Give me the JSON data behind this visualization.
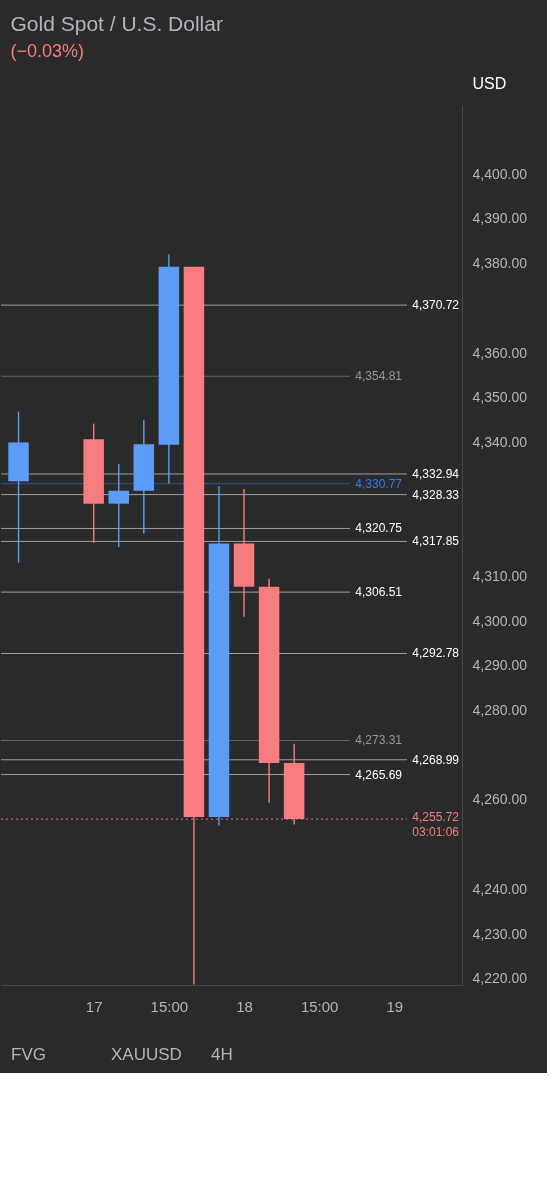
{
  "chart_data": {
    "type": "candlestick",
    "title": "Gold Spot / U.S. Dollar",
    "subtitle": "(−0.03%)",
    "ylabel": "USD",
    "categories": [
      null,
      null,
      null,
      "17",
      null,
      null,
      "15:00",
      null,
      null,
      "18",
      null,
      null,
      "15:00",
      null,
      null,
      "19",
      null,
      null
    ],
    "ohlc": [
      [
        4331.3,
        4346.9,
        4313.1,
        4340.0
      ],
      null,
      null,
      [
        4340.7,
        4344.2,
        4317.5,
        4326.3
      ],
      [
        4326.3,
        4335.2,
        4316.6,
        4329.2
      ],
      [
        4329.2,
        4345.1,
        4319.6,
        4339.6
      ],
      [
        4339.5,
        4382.1,
        4330.8,
        4379.3
      ],
      [
        4379.3,
        4379.3,
        4218.7,
        4256.2
      ],
      [
        4256.2,
        4330.2,
        4254.3,
        4317.4
      ],
      [
        4317.4,
        4329.6,
        4301.0,
        4307.7
      ],
      [
        4307.7,
        4309.5,
        4259.4,
        4268.3
      ],
      [
        4268.3,
        4272.6,
        4254.5,
        4255.72
      ],
      null,
      null,
      null,
      null,
      null,
      null
    ],
    "colors": [
      "#5b9cf6",
      null,
      null,
      "#f77c80",
      "#5b9cf6",
      "#5b9cf6",
      "#5b9cf6",
      "#f77c80",
      "#5b9cf6",
      "#f77c80",
      "#f77c80",
      "#f77c80",
      null,
      null,
      null,
      null,
      null,
      null
    ],
    "ylim": [
      4218.6,
      4415.5
    ],
    "yticks": [
      {
        "value": 4220,
        "label": "4,220.00"
      },
      {
        "value": 4230,
        "label": "4,230.00"
      },
      {
        "value": 4240,
        "label": "4,240.00"
      },
      {
        "value": 4260,
        "label": "4,260.00"
      },
      {
        "value": 4280,
        "label": "4,280.00"
      },
      {
        "value": 4290,
        "label": "4,290.00"
      },
      {
        "value": 4300,
        "label": "4,300.00"
      },
      {
        "value": 4310,
        "label": "4,310.00"
      },
      {
        "value": 4340,
        "label": "4,340.00"
      },
      {
        "value": 4350,
        "label": "4,350.00"
      },
      {
        "value": 4360,
        "label": "4,360.00"
      },
      {
        "value": 4380,
        "label": "4,380.00"
      },
      {
        "value": 4390,
        "label": "4,390.00"
      },
      {
        "value": 4400,
        "label": "4,400.00"
      }
    ],
    "ref_lines": [
      {
        "axis": "y",
        "value": 4370.72,
        "label": "4,370.72",
        "color": "#ffffff"
      },
      {
        "axis": "y",
        "value": 4354.81,
        "label": "4,354.81",
        "color": "#9598a1"
      },
      {
        "axis": "y",
        "value": 4332.94,
        "label": "4,332.94",
        "color": "#ffffff"
      },
      {
        "axis": "y",
        "value": 4330.77,
        "label": "4,330.77",
        "color": "#3179f5"
      },
      {
        "axis": "y",
        "value": 4328.33,
        "label": "4,328.33",
        "color": "#ffffff"
      },
      {
        "axis": "y",
        "value": 4320.75,
        "label": "4,320.75",
        "color": "#ffffff"
      },
      {
        "axis": "y",
        "value": 4317.85,
        "label": "4,317.85",
        "color": "#ffffff"
      },
      {
        "axis": "y",
        "value": 4306.51,
        "label": "4,306.51",
        "color": "#ffffff"
      },
      {
        "axis": "y",
        "value": 4292.78,
        "label": "4,292.78",
        "color": "#ffffff"
      },
      {
        "axis": "y",
        "value": 4273.31,
        "label": "4,273.31",
        "color": "#9598a1"
      },
      {
        "axis": "y",
        "value": 4268.99,
        "label": "4,268.99",
        "color": "#ffffff"
      },
      {
        "axis": "y",
        "value": 4265.69,
        "label": "4,265.69",
        "color": "#ffffff"
      },
      {
        "axis": "y",
        "value": 4255.72,
        "label": "4,255.72\n03:01:06",
        "color": "#f77c80",
        "line_style": "dotted"
      }
    ],
    "annotations": [
      "FVG",
      "XAUUSD",
      "4H"
    ]
  }
}
